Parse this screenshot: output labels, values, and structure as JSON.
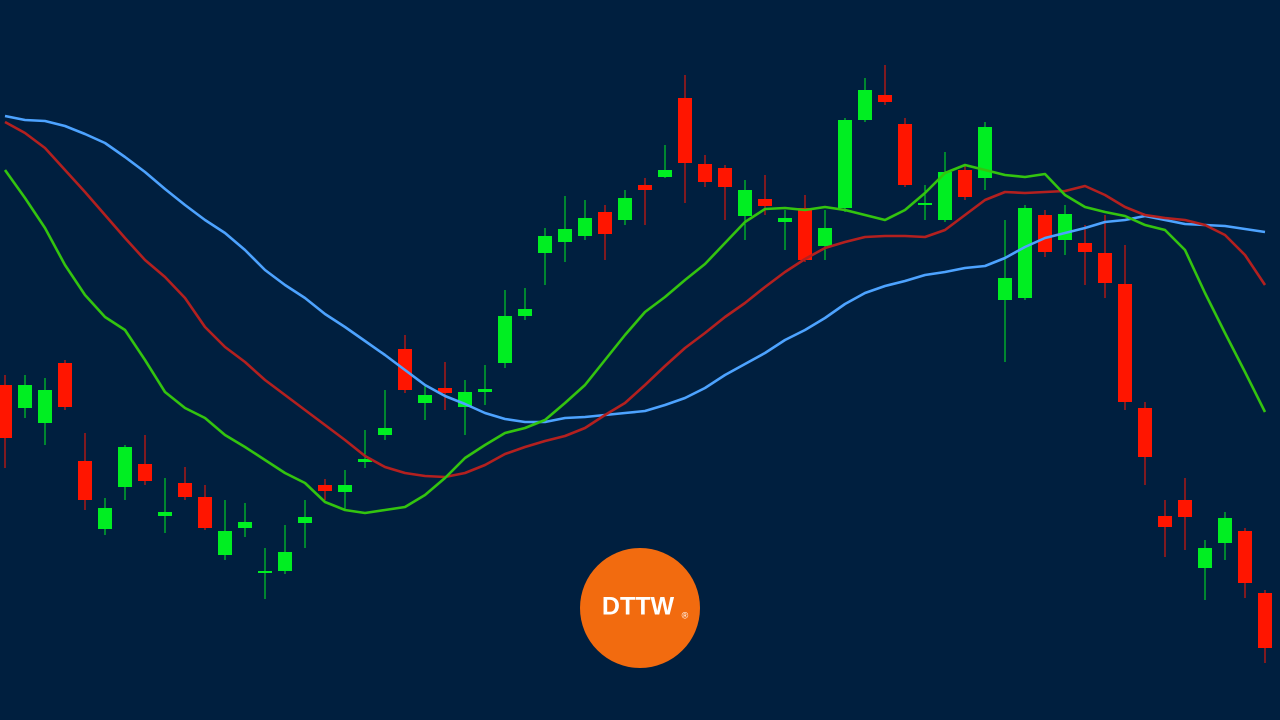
{
  "chart_data": {
    "type": "candlestick",
    "up_color": "#00ee22",
    "down_color": "#ff1500",
    "background": "#001f3f",
    "ylim": [
      0,
      720
    ],
    "open": [
      335,
      312,
      297,
      357,
      259,
      191,
      233,
      256,
      204,
      237,
      223,
      165,
      192,
      147,
      149,
      197,
      235,
      228,
      258,
      285,
      371,
      317,
      332,
      313,
      328,
      357,
      404,
      467,
      478,
      484,
      508,
      500,
      535,
      543,
      622,
      556,
      552,
      504,
      521,
      498,
      512,
      474,
      512,
      600,
      625,
      596,
      515,
      500,
      550,
      542,
      420,
      422,
      505,
      480,
      477,
      467,
      436,
      312,
      204,
      220,
      152,
      177,
      189,
      127
    ],
    "high": [
      345,
      345,
      342,
      360,
      287,
      222,
      275,
      285,
      242,
      253,
      235,
      220,
      217,
      172,
      195,
      220,
      241,
      250,
      290,
      330,
      385,
      335,
      358,
      340,
      355,
      430,
      432,
      492,
      524,
      520,
      515,
      530,
      542,
      575,
      645,
      565,
      555,
      540,
      545,
      510,
      525,
      510,
      602,
      642,
      655,
      602,
      535,
      568,
      555,
      598,
      500,
      515,
      510,
      515,
      495,
      505,
      475,
      318,
      220,
      242,
      180,
      208,
      192,
      130
    ],
    "low": [
      252,
      302,
      275,
      310,
      210,
      185,
      220,
      235,
      187,
      220,
      190,
      160,
      183,
      121,
      146,
      172,
      220,
      210,
      252,
      280,
      327,
      300,
      310,
      285,
      315,
      352,
      400,
      435,
      458,
      480,
      460,
      495,
      495,
      542,
      517,
      533,
      500,
      480,
      505,
      470,
      458,
      460,
      508,
      598,
      615,
      533,
      500,
      498,
      520,
      530,
      358,
      420,
      463,
      465,
      435,
      422,
      310,
      235,
      163,
      170,
      120,
      160,
      122,
      57
    ],
    "close": [
      282,
      335,
      330,
      313,
      220,
      212,
      273,
      239,
      208,
      223,
      192,
      189,
      198,
      149,
      168,
      203,
      229,
      235,
      261,
      292,
      330,
      325,
      327,
      328,
      331,
      404,
      411,
      484,
      491,
      502,
      486,
      522,
      530,
      550,
      557,
      538,
      533,
      530,
      514,
      502,
      460,
      492,
      600,
      630,
      618,
      535,
      517,
      548,
      523,
      593,
      442,
      512,
      468,
      506,
      468,
      437,
      318,
      263,
      193,
      203,
      172,
      202,
      137,
      72
    ],
    "series": [
      {
        "color": "#4da3ff",
        "values": [
          604,
          600,
          599,
          594,
          586,
          577,
          563,
          548,
          531,
          515,
          500,
          487,
          470,
          450,
          435,
          422,
          406,
          393,
          379,
          365,
          350,
          335,
          324,
          316,
          307,
          301,
          298,
          298,
          302,
          303,
          305,
          307,
          309,
          315,
          322,
          332,
          345,
          356,
          367,
          380,
          390,
          402,
          416,
          427,
          434,
          439,
          445,
          448,
          452,
          454,
          462,
          473,
          482,
          487,
          492,
          498,
          500,
          504,
          500,
          496,
          495,
          494,
          491,
          488
        ]
      },
      {
        "color": "#b3201f",
        "values": [
          598,
          587,
          572,
          550,
          528,
          505,
          482,
          460,
          443,
          422,
          393,
          373,
          358,
          340,
          325,
          310,
          295,
          280,
          264,
          253,
          247,
          244,
          243,
          247,
          255,
          266,
          273,
          279,
          284,
          292,
          305,
          317,
          335,
          354,
          372,
          387,
          403,
          417,
          433,
          448,
          461,
          472,
          478,
          483,
          484,
          484,
          483,
          490,
          505,
          520,
          528,
          527,
          528,
          529,
          534,
          525,
          513,
          505,
          502,
          500,
          495,
          485,
          465,
          435
        ]
      },
      {
        "color": "#33c40f",
        "values": [
          550,
          522,
          492,
          455,
          425,
          403,
          390,
          360,
          328,
          312,
          302,
          285,
          273,
          260,
          247,
          237,
          218,
          210,
          207,
          210,
          213,
          225,
          242,
          262,
          275,
          287,
          292,
          300,
          317,
          335,
          360,
          385,
          408,
          423,
          440,
          456,
          477,
          498,
          511,
          512,
          510,
          513,
          510,
          505,
          500,
          510,
          527,
          547,
          555,
          550,
          545,
          543,
          546,
          525,
          513,
          508,
          504,
          495,
          490,
          470,
          427,
          387,
          348,
          308
        ]
      }
    ]
  },
  "logo": {
    "text": "DTTW",
    "mark": "®"
  }
}
